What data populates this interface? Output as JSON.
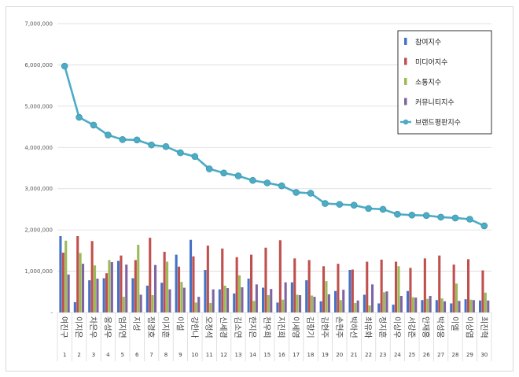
{
  "chart_data": {
    "type": "bar",
    "title": "",
    "xlabel": "",
    "ylabel": "",
    "ylim": [
      0,
      7000000
    ],
    "yticks": [
      0,
      1000000,
      2000000,
      3000000,
      4000000,
      5000000,
      6000000,
      7000000
    ],
    "ytick_labels": [
      "-",
      "1,000,000",
      "2,000,000",
      "3,000,000",
      "4,000,000",
      "5,000,000",
      "6,000,000",
      "7,000,000"
    ],
    "grid": true,
    "legend_position": "top-right",
    "ranks": [
      "1",
      "2",
      "3",
      "4",
      "5",
      "6",
      "7",
      "8",
      "9",
      "10",
      "11",
      "12",
      "13",
      "14",
      "15",
      "16",
      "17",
      "18",
      "19",
      "20",
      "21",
      "22",
      "23",
      "24",
      "25",
      "26",
      "27",
      "28",
      "29",
      "30"
    ],
    "categories": [
      "여진구",
      "이지은",
      "차은우",
      "옹성우",
      "엄지연",
      "지성",
      "정경호",
      "이지훈",
      "이설",
      "강한나",
      "오정석",
      "신세경",
      "김소연",
      "한지은",
      "천우희",
      "지진희",
      "이세영",
      "김향기",
      "김현주",
      "손현주",
      "박하선",
      "최유화",
      "정지훈",
      "이상우",
      "서강준",
      "안재홍",
      "박성웅",
      "이엘",
      "이상엽",
      "최진혁"
    ],
    "series": [
      {
        "name": "참여지수",
        "color": "#4472c4",
        "type": "bar",
        "values": [
          1850000,
          250000,
          780000,
          830000,
          1250000,
          830000,
          650000,
          720000,
          1400000,
          1760000,
          1030000,
          560000,
          460000,
          820000,
          600000,
          240000,
          730000,
          780000,
          270000,
          520000,
          1030000,
          430000,
          220000,
          190000,
          520000,
          300000,
          300000,
          220000,
          320000,
          290000
        ]
      },
      {
        "name": "미디어지수",
        "color": "#c0504d",
        "type": "bar",
        "values": [
          1450000,
          1850000,
          1730000,
          950000,
          1380000,
          1270000,
          1810000,
          1470000,
          1110000,
          1360000,
          1620000,
          1550000,
          1340000,
          1400000,
          1570000,
          1750000,
          1310000,
          1270000,
          1120000,
          1180000,
          1040000,
          1230000,
          1280000,
          1230000,
          1080000,
          1310000,
          1380000,
          1160000,
          1290000,
          1020000
        ]
      },
      {
        "name": "소통지수",
        "color": "#9bbb59",
        "type": "bar",
        "values": [
          1740000,
          1440000,
          1140000,
          1270000,
          380000,
          1640000,
          420000,
          1230000,
          740000,
          240000,
          230000,
          650000,
          900000,
          280000,
          420000,
          310000,
          430000,
          410000,
          760000,
          300000,
          230000,
          170000,
          490000,
          1120000,
          370000,
          330000,
          340000,
          700000,
          310000,
          480000
        ]
      },
      {
        "name": "커뮤니티지수",
        "color": "#8064a2",
        "type": "bar",
        "values": [
          920000,
          1180000,
          820000,
          1220000,
          1160000,
          430000,
          1150000,
          560000,
          600000,
          380000,
          560000,
          590000,
          610000,
          680000,
          570000,
          730000,
          420000,
          380000,
          440000,
          550000,
          290000,
          680000,
          510000,
          400000,
          360000,
          400000,
          270000,
          280000,
          300000,
          290000
        ]
      },
      {
        "name": "브랜드평판지수",
        "color": "#4bacc6",
        "type": "line",
        "values": [
          5970000,
          4730000,
          4540000,
          4300000,
          4190000,
          4180000,
          4060000,
          4020000,
          3870000,
          3780000,
          3480000,
          3380000,
          3310000,
          3200000,
          3140000,
          3070000,
          2910000,
          2890000,
          2640000,
          2620000,
          2600000,
          2520000,
          2500000,
          2380000,
          2360000,
          2350000,
          2310000,
          2290000,
          2260000,
          2100000
        ]
      }
    ]
  }
}
